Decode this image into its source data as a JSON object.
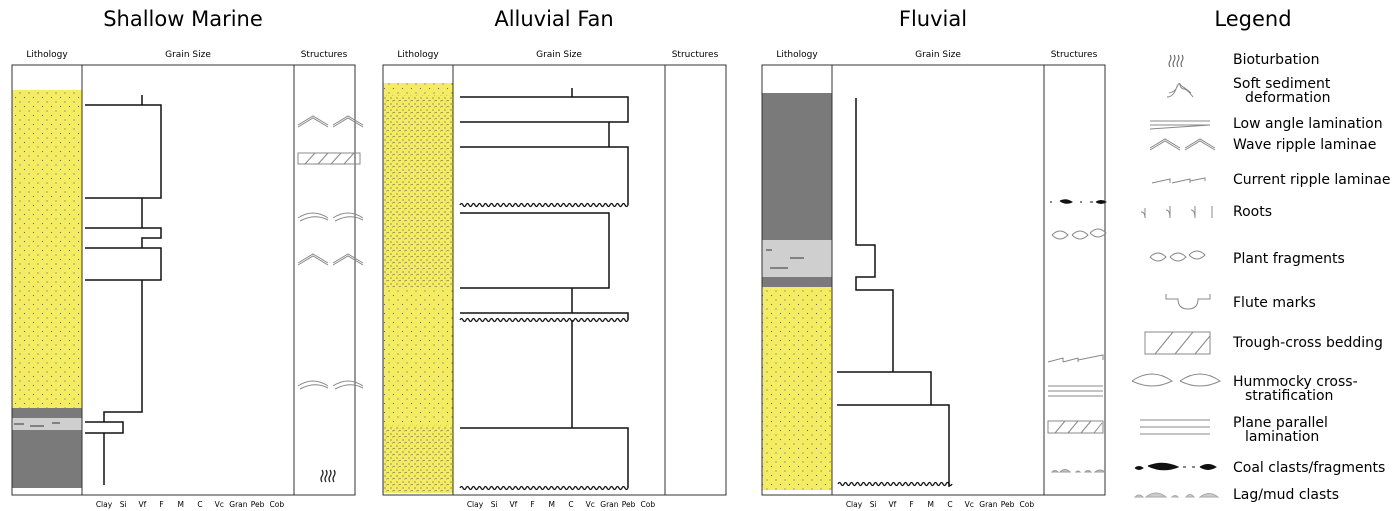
{
  "panels": [
    {
      "title": "Shallow Marine",
      "headers": [
        "Lithology",
        "Grain Size",
        "Structures"
      ],
      "grain_sizes": [
        "Clay",
        "Si",
        "Vf",
        "F",
        "M",
        "C",
        "Vc",
        "Gran",
        "Peb",
        "Cob"
      ]
    },
    {
      "title": "Alluvial Fan",
      "headers": [
        "Lithology",
        "Grain Size",
        "Structures"
      ],
      "grain_sizes": [
        "Clay",
        "Si",
        "Vf",
        "F",
        "M",
        "C",
        "Vc",
        "Gran",
        "Peb",
        "Cob"
      ]
    },
    {
      "title": "Fluvial",
      "headers": [
        "Lithology",
        "Grain Size",
        "Structures"
      ],
      "grain_sizes": [
        "Clay",
        "Si",
        "Vf",
        "F",
        "M",
        "C",
        "Vc",
        "Gran",
        "Peb",
        "Cob"
      ]
    }
  ],
  "legend": {
    "title": "Legend",
    "items": [
      [
        "Bioturbation"
      ],
      [
        "Soft sediment",
        "deformation"
      ],
      [
        "Low angle lamination"
      ],
      [
        "Wave ripple laminae"
      ],
      [
        "Current ripple laminae"
      ],
      [
        "Roots"
      ],
      [
        "Plant fragments"
      ],
      [
        "Flute marks"
      ],
      [
        "Trough-cross bedding"
      ],
      [
        "Hummocky cross-",
        "stratification"
      ],
      [
        "Plane parallel",
        "lamination"
      ],
      [
        "Coal clasts/fragments"
      ],
      [
        "Lag/mud clasts"
      ]
    ]
  }
}
